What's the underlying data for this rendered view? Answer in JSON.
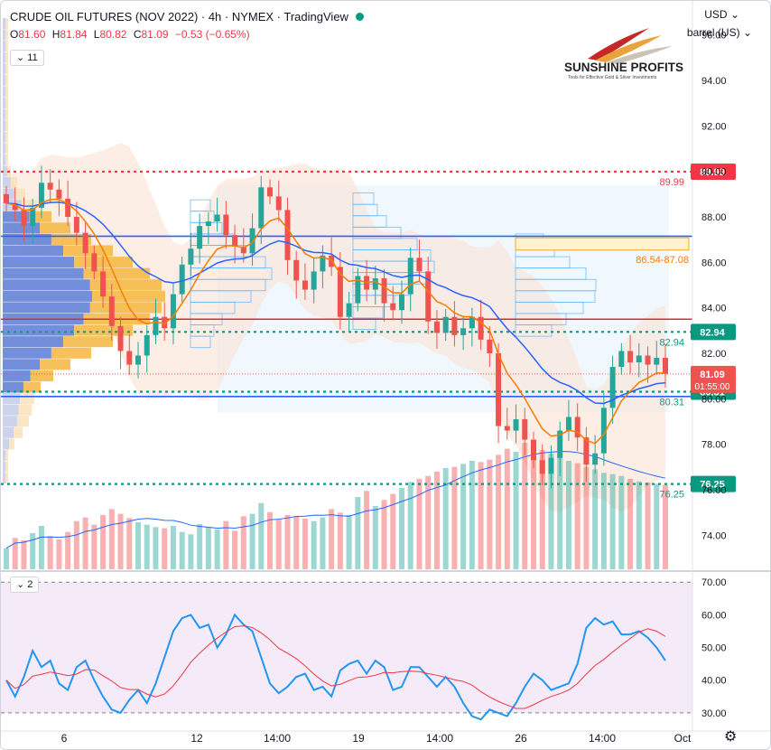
{
  "header": {
    "title": "CRUDE OIL FUTURES (NOV 2022) · 4h · NYMEX · TradingView",
    "ohlc": {
      "O": "81.60",
      "H": "81.84",
      "L": "80.82",
      "C": "81.09",
      "change": "−0.53 (−0.65%)"
    },
    "indicator_count": "11",
    "oscillator_count": "2"
  },
  "toolbar": {
    "currency": "USD",
    "unit": "barrel (US)"
  },
  "logo": {
    "name": "SUNSHINE PROFITS",
    "tagline": "Tools for Effective Gold & Silver Investments"
  },
  "colors": {
    "up": "#26a69a",
    "down": "#ef5350",
    "ema_fast": "#f57c00",
    "ema_slow": "#2962ff",
    "resistance": "#f23645",
    "support": "#089981",
    "rsi": "#2196f3",
    "rsi_ma": "#f23645"
  },
  "chart_data": [
    {
      "type": "candlestick",
      "timeframe": "4h",
      "ylim": [
        72.5,
        97.5
      ],
      "y_ticks": [
        "96.00",
        "94.00",
        "92.00",
        "90.00",
        "88.00",
        "86.00",
        "84.00",
        "82.00",
        "80.00",
        "78.00",
        "76.00",
        "74.00"
      ],
      "x_tick_labels": [
        "6",
        "12",
        "14:00",
        "19",
        "14:00",
        "26",
        "14:00",
        "Oct"
      ],
      "close_series": [
        88.6,
        88.3,
        87.6,
        88.4,
        89.5,
        89.2,
        88.8,
        88.0,
        87.3,
        86.4,
        85.6,
        84.5,
        83.2,
        82.1,
        81.5,
        81.9,
        82.8,
        83.6,
        83.1,
        84.6,
        85.9,
        86.6,
        87.6,
        87.8,
        88.1,
        87.2,
        86.7,
        86.4,
        87.5,
        89.3,
        88.9,
        88.3,
        86.1,
        85.2,
        84.8,
        85.6,
        86.3,
        85.8,
        83.6,
        84.2,
        85.4,
        84.8,
        85.3,
        84.2,
        83.9,
        84.6,
        86.2,
        85.6,
        83.4,
        82.9,
        83.6,
        82.8,
        83.1,
        83.6,
        82.6,
        82.0,
        78.8,
        78.6,
        79.1,
        78.2,
        77.3,
        76.7,
        77.4,
        78.6,
        79.2,
        78.3,
        77.1,
        77.6,
        79.6,
        81.4,
        82.1,
        81.6,
        81.9,
        81.5,
        81.8,
        81.09
      ],
      "volume_relative": [
        0.35,
        0.52,
        0.48,
        0.6,
        0.72,
        0.55,
        0.5,
        0.62,
        0.8,
        0.86,
        0.74,
        0.9,
        1.0,
        0.92,
        0.85,
        0.78,
        0.74,
        0.7,
        0.68,
        0.72,
        0.62,
        0.58,
        0.75,
        0.7,
        0.66,
        0.8,
        0.64,
        0.88,
        0.92,
        1.1,
        0.95,
        0.82,
        0.9,
        0.88,
        0.84,
        0.8,
        0.86,
        1.0,
        0.94,
        0.9,
        1.2,
        1.3,
        1.05,
        1.15,
        1.25,
        1.35,
        1.45,
        1.5,
        1.55,
        1.62,
        1.68,
        1.7,
        1.75,
        1.8,
        1.78,
        1.82,
        1.9,
        2.0,
        1.95,
        2.1,
        2.05,
        1.98,
        1.92,
        1.88,
        1.8,
        1.76,
        1.7,
        1.66,
        1.6,
        1.58,
        1.55,
        1.5,
        1.46,
        1.44,
        1.42,
        1.4
      ],
      "levels": [
        {
          "label": "89.99",
          "value": 89.99,
          "kind": "resistance"
        },
        {
          "label": "82.94",
          "value": 82.94,
          "kind": "support"
        },
        {
          "label": "80.31",
          "value": 80.31,
          "kind": "support"
        },
        {
          "label": "76.25",
          "value": 76.25,
          "kind": "support"
        }
      ],
      "zone": {
        "label": "86.54-87.08",
        "from": 86.54,
        "to": 87.08
      },
      "last_price": {
        "value": "81.09",
        "countdown": "01:55:00"
      }
    },
    {
      "type": "line",
      "indicator": "RSI",
      "ylim": [
        25,
        72
      ],
      "y_ticks": [
        "70.00",
        "60.00",
        "50.00",
        "40.00",
        "30.00"
      ],
      "bands": [
        70,
        30
      ],
      "values": [
        40,
        35,
        41,
        49,
        44,
        46,
        39,
        37,
        44,
        46,
        40,
        35,
        31,
        30,
        34,
        37,
        33,
        39,
        47,
        55,
        59,
        60,
        56,
        57,
        50,
        54,
        60,
        57,
        55,
        47,
        39,
        36,
        38,
        41,
        42,
        37,
        38,
        35,
        43,
        45,
        46,
        42,
        46,
        44,
        37,
        38,
        44,
        44,
        41,
        38,
        41,
        38,
        33,
        29,
        28,
        31,
        30,
        29,
        33,
        38,
        42,
        40,
        37,
        38,
        39,
        45,
        56,
        59,
        57,
        58,
        54,
        54,
        55,
        53,
        50,
        46
      ]
    }
  ]
}
